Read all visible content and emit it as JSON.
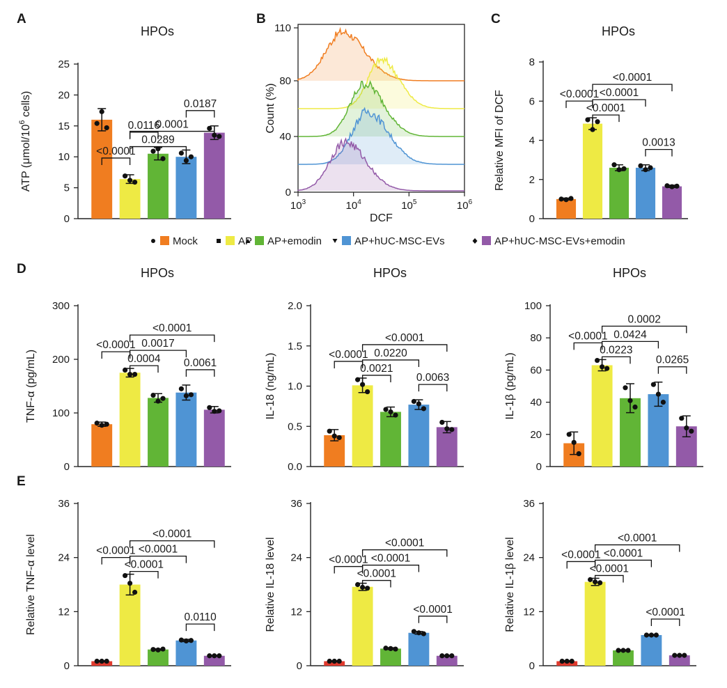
{
  "colors": {
    "Mock": "#f07d20",
    "AP": "#eeea44",
    "AP+emodin": "#61b536",
    "AP+hUC-MSC-EVs": "#4f94d4",
    "AP+hUC-MSC-EVs+emodin": "#935aa8",
    "Mock_E": "#e03a2e"
  },
  "legend": {
    "items": [
      {
        "label": "Mock",
        "marker": "dot",
        "color": "#f07d20"
      },
      {
        "label": "AP",
        "marker": "square",
        "color": "#eeea44"
      },
      {
        "label": "AP+emodin",
        "marker": "triangle",
        "color": "#61b536"
      },
      {
        "label": "AP+hUC-MSC-EVs",
        "marker": "triangle-down",
        "color": "#4f94d4"
      },
      {
        "label": "AP+hUC-MSC-EVs+emodin",
        "marker": "diamond",
        "color": "#935aa8"
      }
    ]
  },
  "chart_data": [
    {
      "id": "A",
      "panel_label": "A",
      "type": "bar",
      "title": "HPOs",
      "ylabel": "ATP (μmol/10⁶ cells)",
      "categories": [
        "Mock",
        "AP",
        "AP+emodin",
        "AP+hUC-MSC-EVs",
        "AP+hUC-MSC-EVs+emodin"
      ],
      "values": [
        16.0,
        6.4,
        10.5,
        10.0,
        13.9
      ],
      "errors": [
        1.8,
        0.7,
        1.0,
        1.1,
        1.1
      ],
      "points": [
        [
          15.4,
          17.3,
          14.7
        ],
        [
          6.9,
          6.2,
          5.9
        ],
        [
          10.9,
          11.3,
          9.7
        ],
        [
          10.6,
          9.4,
          10.0
        ],
        [
          14.6,
          13.5,
          13.3
        ]
      ],
      "ylim": [
        0,
        25
      ],
      "yticks": [
        0,
        5,
        10,
        15,
        20,
        25
      ],
      "comparisons": [
        {
          "from": 0,
          "to": 1,
          "label": "<0.0001"
        },
        {
          "from": 1,
          "to": 2,
          "label": "0.0116"
        },
        {
          "from": 1,
          "to": 3,
          "label": "0.0289"
        },
        {
          "from": 1,
          "to": 4,
          "label": "0.0001"
        },
        {
          "from": 3,
          "to": 4,
          "label": "0.0187"
        }
      ]
    },
    {
      "id": "B",
      "panel_label": "B",
      "type": "area",
      "xlabel": "DCF",
      "ylabel": "Count (%)",
      "xtick_labels": [
        "10³",
        "10⁴",
        "10⁵",
        "10⁶"
      ],
      "ytick_labels": [
        "0",
        "40",
        "80",
        "110"
      ],
      "series": [
        {
          "color": "#f07d20",
          "peak_log10": 3.8,
          "width": 0.3
        },
        {
          "color": "#eeea44",
          "peak_log10": 4.5,
          "width": 0.24
        },
        {
          "color": "#61b536",
          "peak_log10": 4.2,
          "width": 0.26
        },
        {
          "color": "#4f94d4",
          "peak_log10": 4.25,
          "width": 0.28
        },
        {
          "color": "#935aa8",
          "peak_log10": 3.85,
          "width": 0.28
        }
      ]
    },
    {
      "id": "C",
      "panel_label": "C",
      "type": "bar",
      "title": "HPOs",
      "ylabel": "Relative MFI of DCF",
      "categories": [
        "Mock",
        "AP",
        "AP+emodin",
        "AP+hUC-MSC-EVs",
        "AP+hUC-MSC-EVs+emodin"
      ],
      "values": [
        1.0,
        4.85,
        2.6,
        2.6,
        1.65
      ],
      "errors": [
        0.05,
        0.3,
        0.15,
        0.15,
        0.06
      ],
      "points": [
        [
          1.0,
          0.97,
          1.03
        ],
        [
          5.05,
          4.55,
          4.95
        ],
        [
          2.75,
          2.5,
          2.55
        ],
        [
          2.7,
          2.5,
          2.6
        ],
        [
          1.68,
          1.63,
          1.66
        ]
      ],
      "ylim": [
        0,
        8
      ],
      "yticks": [
        0,
        2,
        4,
        6,
        8
      ],
      "comparisons": [
        {
          "from": 0,
          "to": 1,
          "label": "<0.0001"
        },
        {
          "from": 1,
          "to": 2,
          "label": "<0.0001"
        },
        {
          "from": 1,
          "to": 3,
          "label": "<0.0001"
        },
        {
          "from": 1,
          "to": 4,
          "label": "<0.0001"
        },
        {
          "from": 3,
          "to": 4,
          "label": "0.0013"
        }
      ]
    },
    {
      "id": "D1",
      "panel_label": "D",
      "type": "bar",
      "title": "HPOs",
      "ylabel": "TNF-α (pg/mL)",
      "categories": [
        "Mock",
        "AP",
        "AP+emodin",
        "AP+hUC-MSC-EVs",
        "AP+hUC-MSC-EVs+emodin"
      ],
      "values": [
        79,
        175,
        128,
        138,
        106
      ],
      "errors": [
        4,
        8,
        8,
        14,
        6
      ],
      "points": [
        [
          81,
          77,
          79
        ],
        [
          180,
          172,
          172
        ],
        [
          133,
          122,
          127
        ],
        [
          145,
          132,
          134
        ],
        [
          110,
          103,
          104
        ]
      ],
      "ylim": [
        0,
        300
      ],
      "yticks": [
        0,
        100,
        200,
        300
      ],
      "comparisons": [
        {
          "from": 0,
          "to": 1,
          "label": "<0.0001"
        },
        {
          "from": 1,
          "to": 2,
          "label": "0.0004"
        },
        {
          "from": 1,
          "to": 3,
          "label": "0.0017"
        },
        {
          "from": 1,
          "to": 4,
          "label": "<0.0001"
        },
        {
          "from": 3,
          "to": 4,
          "label": "0.0061"
        }
      ]
    },
    {
      "id": "D2",
      "type": "bar",
      "title": "HPOs",
      "ylabel": "IL-18 (ng/mL)",
      "categories": [
        "Mock",
        "AP",
        "AP+emodin",
        "AP+hUC-MSC-EVs",
        "AP+hUC-MSC-EVs+emodin"
      ],
      "values": [
        0.39,
        1.01,
        0.68,
        0.77,
        0.49
      ],
      "errors": [
        0.07,
        0.09,
        0.06,
        0.06,
        0.07
      ],
      "points": [
        [
          0.44,
          0.38,
          0.36
        ],
        [
          1.08,
          1.02,
          0.93
        ],
        [
          0.71,
          0.68,
          0.64
        ],
        [
          0.81,
          0.78,
          0.72
        ],
        [
          0.55,
          0.47,
          0.46
        ]
      ],
      "ylim": [
        0,
        2.0
      ],
      "yticks": [
        0.0,
        0.5,
        1.0,
        1.5,
        2.0
      ],
      "ytick_labels": [
        "0.0",
        "0.5",
        "1.0",
        "1.5",
        "2.0"
      ],
      "comparisons": [
        {
          "from": 0,
          "to": 1,
          "label": "<0.0001"
        },
        {
          "from": 1,
          "to": 2,
          "label": "0.0021"
        },
        {
          "from": 1,
          "to": 3,
          "label": "0.0220"
        },
        {
          "from": 1,
          "to": 4,
          "label": "<0.0001"
        },
        {
          "from": 3,
          "to": 4,
          "label": "0.0063"
        }
      ]
    },
    {
      "id": "D3",
      "type": "bar",
      "title": "HPOs",
      "ylabel": "IL-1β (pg/mL)",
      "categories": [
        "Mock",
        "AP",
        "AP+emodin",
        "AP+hUC-MSC-EVs",
        "AP+hUC-MSC-EVs+emodin"
      ],
      "values": [
        14.5,
        63,
        42.5,
        45,
        25
      ],
      "errors": [
        7,
        3.5,
        9,
        7.5,
        6.5
      ],
      "points": [
        [
          20,
          15,
          8
        ],
        [
          66,
          62,
          61
        ],
        [
          49,
          41,
          37
        ],
        [
          51,
          45,
          40
        ],
        [
          30,
          24,
          22
        ]
      ],
      "ylim": [
        0,
        100
      ],
      "yticks": [
        0,
        20,
        40,
        60,
        80,
        100
      ],
      "comparisons": [
        {
          "from": 0,
          "to": 1,
          "label": "<0.0001"
        },
        {
          "from": 1,
          "to": 2,
          "label": "0.0223"
        },
        {
          "from": 1,
          "to": 3,
          "label": "0.0424"
        },
        {
          "from": 1,
          "to": 4,
          "label": "0.0002"
        },
        {
          "from": 3,
          "to": 4,
          "label": "0.0265"
        }
      ]
    },
    {
      "id": "E1",
      "panel_label": "E",
      "type": "bar",
      "ylabel": "Relative TNF-α level",
      "first_color": "#e03a2e",
      "categories": [
        "Mock",
        "AP",
        "AP+emodin",
        "AP+hUC-MSC-EVs",
        "AP+hUC-MSC-EVs+emodin"
      ],
      "values": [
        1.0,
        18.0,
        3.6,
        5.6,
        2.2
      ],
      "errors": [
        0.1,
        2.3,
        0.15,
        0.25,
        0.1
      ],
      "points": [
        [
          1.0,
          1.0,
          1.0
        ],
        [
          20.0,
          18.3,
          16.3
        ],
        [
          3.6,
          3.5,
          3.7
        ],
        [
          5.7,
          5.5,
          5.6
        ],
        [
          2.2,
          2.2,
          2.2
        ]
      ],
      "ylim": [
        0,
        36
      ],
      "yticks": [
        0,
        12,
        24,
        36
      ],
      "comparisons": [
        {
          "from": 0,
          "to": 1,
          "label": "<0.0001"
        },
        {
          "from": 1,
          "to": 2,
          "label": "<0.0001"
        },
        {
          "from": 1,
          "to": 3,
          "label": "<0.0001"
        },
        {
          "from": 1,
          "to": 4,
          "label": "<0.0001"
        },
        {
          "from": 3,
          "to": 4,
          "label": "0.0110"
        }
      ]
    },
    {
      "id": "E2",
      "type": "bar",
      "ylabel": "Relative IL-18 level",
      "first_color": "#e03a2e",
      "categories": [
        "Mock",
        "AP",
        "AP+emodin",
        "AP+hUC-MSC-EVs",
        "AP+hUC-MSC-EVs+emodin"
      ],
      "values": [
        1.0,
        17.5,
        3.8,
        7.3,
        2.2
      ],
      "errors": [
        0.1,
        0.8,
        0.2,
        0.3,
        0.1
      ],
      "points": [
        [
          1.0,
          1.0,
          1.0
        ],
        [
          18.0,
          17.4,
          17.2
        ],
        [
          3.9,
          3.8,
          3.7
        ],
        [
          7.6,
          7.3,
          7.1
        ],
        [
          2.2,
          2.2,
          2.2
        ]
      ],
      "ylim": [
        0,
        36
      ],
      "yticks": [
        0,
        12,
        24,
        36
      ],
      "comparisons": [
        {
          "from": 0,
          "to": 1,
          "label": "<0.0001"
        },
        {
          "from": 1,
          "to": 2,
          "label": "<0.0001"
        },
        {
          "from": 1,
          "to": 3,
          "label": "<0.0001"
        },
        {
          "from": 1,
          "to": 4,
          "label": "<0.0001"
        },
        {
          "from": 3,
          "to": 4,
          "label": "<0.0001"
        }
      ]
    },
    {
      "id": "E3",
      "type": "bar",
      "ylabel": "Relative IL-1β level",
      "first_color": "#e03a2e",
      "categories": [
        "Mock",
        "AP",
        "AP+emodin",
        "AP+hUC-MSC-EVs",
        "AP+hUC-MSC-EVs+emodin"
      ],
      "values": [
        1.0,
        18.6,
        3.4,
        6.8,
        2.3
      ],
      "errors": [
        0.1,
        0.8,
        0.15,
        0.15,
        0.1
      ],
      "points": [
        [
          1.0,
          1.0,
          1.0
        ],
        [
          19.1,
          18.6,
          18.4
        ],
        [
          3.4,
          3.4,
          3.4
        ],
        [
          6.8,
          6.8,
          6.8
        ],
        [
          2.3,
          2.3,
          2.3
        ]
      ],
      "ylim": [
        0,
        36
      ],
      "yticks": [
        0,
        12,
        24,
        36
      ],
      "comparisons": [
        {
          "from": 0,
          "to": 1,
          "label": "<0.0001"
        },
        {
          "from": 1,
          "to": 2,
          "label": "<0.0001"
        },
        {
          "from": 1,
          "to": 3,
          "label": "<0.0001"
        },
        {
          "from": 1,
          "to": 4,
          "label": "<0.0001"
        },
        {
          "from": 3,
          "to": 4,
          "label": "<0.0001"
        }
      ]
    }
  ]
}
